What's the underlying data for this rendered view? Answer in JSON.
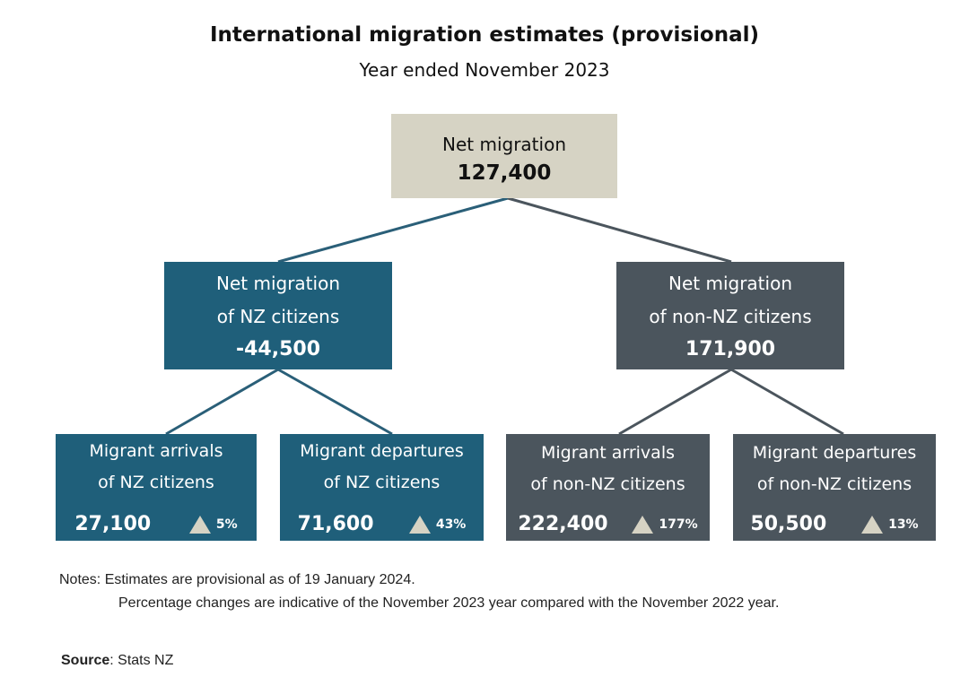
{
  "title": "International migration estimates (provisional)",
  "subtitle": "Year ended November 2023",
  "root": {
    "label": "Net migration",
    "value": "127,400"
  },
  "nz": {
    "label1": "Net migration",
    "label2": "of NZ citizens",
    "value": "-44,500",
    "arrivals": {
      "label1": "Migrant arrivals",
      "label2": "of NZ citizens",
      "value": "27,100",
      "change": "5%"
    },
    "departures": {
      "label1": "Migrant departures",
      "label2": "of NZ citizens",
      "value": "71,600",
      "change": "43%"
    }
  },
  "non_nz": {
    "label1": "Net migration",
    "label2": "of non-NZ citizens",
    "value": "171,900",
    "arrivals": {
      "label1": "Migrant arrivals",
      "label2": "of non-NZ citizens",
      "value": "222,400",
      "change": "177%"
    },
    "departures": {
      "label1": "Migrant departures",
      "label2": "of non-NZ citizens",
      "value": "50,500",
      "change": "13%"
    }
  },
  "notes": {
    "line1": "Notes: Estimates are provisional as of 19 January 2024.",
    "line2": "Percentage changes are indicative of the November 2023 year compared with the November 2022 year."
  },
  "source": {
    "label": "Source",
    "text": ": Stats NZ"
  },
  "colors": {
    "nz": "#1f5f7a",
    "non_nz": "#4b555d",
    "root": "#d6d3c4",
    "connector_nz": "#2a5f78",
    "connector_non": "#4b555d"
  }
}
